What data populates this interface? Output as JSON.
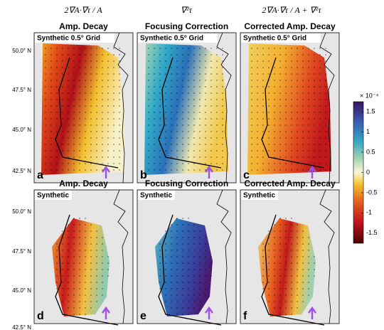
{
  "column_headers": [
    "2∇A·∇τ / A",
    "∇²τ",
    "2∇A·∇τ / A + ∇²τ"
  ],
  "panels": [
    {
      "title": "Amp. Decay",
      "tag": "Synthetic 0.5° Grid",
      "letter": "a"
    },
    {
      "title": "Focusing Correction",
      "tag": "Synthetic 0.5° Grid",
      "letter": "b"
    },
    {
      "title": "Corrected Amp. Decay",
      "tag": "Synthetic 0.5° Grid",
      "letter": "c"
    },
    {
      "title": "Amp. Decay",
      "tag": "Synthetic",
      "letter": "d"
    },
    {
      "title": "Focusing Correction",
      "tag": "Synthetic",
      "letter": "e"
    },
    {
      "title": "Corrected Amp. Decay",
      "tag": "Synthetic",
      "letter": "f"
    }
  ],
  "lat_labels": [
    "50.0° N",
    "47.5° N",
    "45.0° N",
    "42.5° N"
  ],
  "colorbar": {
    "exponent": "× 10⁻⁴",
    "lim": [
      -1.75,
      1.75
    ],
    "ticks": [
      1.5,
      1,
      0.5,
      0,
      -0.5,
      -1,
      -1.5
    ]
  }
}
